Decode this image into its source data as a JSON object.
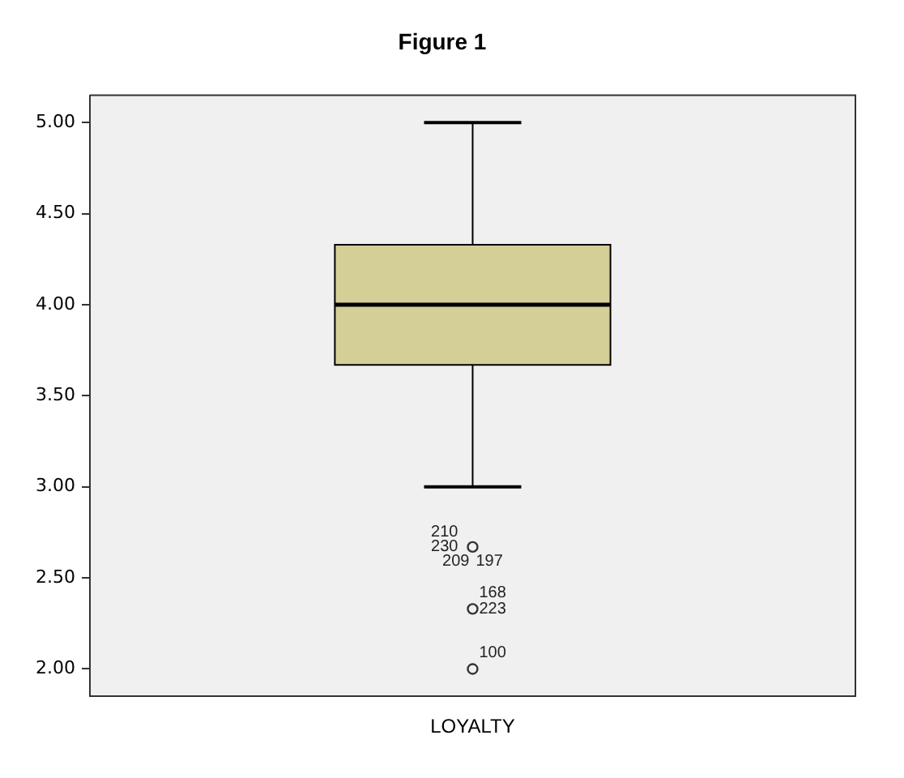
{
  "chart_data": {
    "type": "box",
    "title": "Figure 1",
    "categories": [
      "LOYALTY"
    ],
    "color": "#d4cf96",
    "boxes": [
      {
        "low": 3.0,
        "q1": 3.67,
        "median": 4.0,
        "q3": 4.33,
        "high": 5.0,
        "outliers": [
          2.67,
          2.33,
          2.0
        ]
      }
    ],
    "ylim": [
      1.85,
      5.15
    ],
    "yticks": [
      {
        "value": 2,
        "label": "2.00"
      },
      {
        "value": 2.5,
        "label": "2.50"
      },
      {
        "value": 3,
        "label": "3.00"
      },
      {
        "value": 3.5,
        "label": "3.50"
      },
      {
        "value": 4,
        "label": "4.00"
      },
      {
        "value": 4.5,
        "label": "4.50"
      },
      {
        "value": 5,
        "label": "5.00"
      }
    ],
    "grid": false,
    "annotations": [
      "210",
      "230",
      "209",
      "197",
      "168",
      "223",
      "100"
    ]
  }
}
